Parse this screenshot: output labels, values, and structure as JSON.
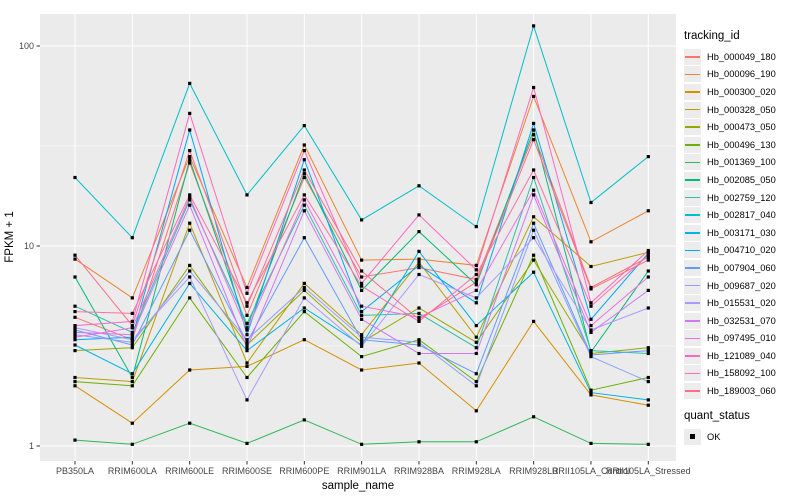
{
  "figure": {
    "legend": {
      "tracking_title": "tracking_id",
      "quant_title": "quant_status",
      "quant_ok_label": "OK",
      "quant_ok_marker": "black-square"
    },
    "colors": {
      "panel_bg": "#EBEBEB",
      "grid": "#FFFFFF",
      "marker": "#000000",
      "axis_text": "#444444",
      "axis_title": "#000000",
      "legend_key_bg": "#ECECEC"
    }
  },
  "chart_data": {
    "type": "line",
    "title": "",
    "xlabel": "sample_name",
    "ylabel": "FPKM + 1",
    "y_scale": "log10",
    "y_ticks": [
      1,
      10,
      100
    ],
    "y_minor_breaks": [
      3.162,
      31.62
    ],
    "ylim": [
      0.85,
      145
    ],
    "grid": "white major and minor gridlines on gray panel",
    "legend_position": "right",
    "point_shape": "small black square at every data point (quant_status = OK)",
    "categories": [
      "PB350LA",
      "RRIM600LA",
      "RRIM600LE",
      "RRIM600SE",
      "RRIM600PE",
      "RRIM901LA",
      "RRIM928BA",
      "RRIM928LA",
      "RRIM928LB",
      "RRII105LA_Control",
      "RRII105LA_Stressed"
    ],
    "series": [
      {
        "name": "Hb_000049_180",
        "color": "#F8766D",
        "values": [
          4.4,
          3.4,
          26,
          4.5,
          22,
          7.0,
          7.8,
          6.8,
          36,
          6.2,
          8.8
        ]
      },
      {
        "name": "Hb_000096_190",
        "color": "#EC8431",
        "values": [
          8.6,
          5.5,
          28,
          6.2,
          32,
          8.5,
          8.6,
          8.0,
          56,
          10.5,
          15
        ]
      },
      {
        "name": "Hb_000300_020",
        "color": "#D69100",
        "values": [
          2.0,
          1.3,
          2.4,
          2.5,
          3.4,
          2.4,
          2.6,
          1.5,
          4.2,
          1.8,
          1.6
        ]
      },
      {
        "name": "Hb_000328_050",
        "color": "#BC9D00",
        "values": [
          2.2,
          2.1,
          13,
          2.6,
          6.5,
          3.6,
          8.3,
          3.5,
          14,
          7.9,
          9.3
        ]
      },
      {
        "name": "Hb_000473_050",
        "color": "#97A900",
        "values": [
          3.0,
          3.1,
          8.0,
          3.2,
          6.0,
          3.3,
          4.9,
          3.3,
          8.5,
          2.9,
          3.1
        ]
      },
      {
        "name": "Hb_000496_130",
        "color": "#6BB100",
        "values": [
          2.1,
          2.0,
          5.5,
          2.2,
          4.7,
          2.8,
          3.4,
          2.1,
          9.0,
          1.9,
          2.2
        ]
      },
      {
        "name": "Hb_001369_100",
        "color": "#2FB857",
        "values": [
          1.07,
          1.02,
          1.3,
          1.03,
          1.35,
          1.02,
          1.05,
          1.05,
          1.4,
          1.03,
          1.02
        ]
      },
      {
        "name": "Hb_002085_050",
        "color": "#00BB77",
        "values": [
          7.0,
          2.2,
          27,
          3.9,
          23,
          6.0,
          11.8,
          6.4,
          38,
          2.95,
          7.5
        ]
      },
      {
        "name": "Hb_002759_120",
        "color": "#2FC1A7",
        "values": [
          5.0,
          3.7,
          17,
          4.1,
          16,
          4.5,
          4.6,
          3.1,
          22,
          3.0,
          2.9
        ]
      },
      {
        "name": "Hb_002817_040",
        "color": "#00BFC8",
        "values": [
          22,
          11,
          65,
          18,
          40,
          13.5,
          20,
          12.5,
          126,
          16.5,
          28
        ]
      },
      {
        "name": "Hb_003171_030",
        "color": "#00B4E6",
        "values": [
          3.2,
          2.3,
          6.5,
          3.0,
          4.9,
          3.2,
          9.4,
          4.0,
          7.4,
          1.85,
          1.7
        ]
      },
      {
        "name": "Hb_004710_020",
        "color": "#00A7F5",
        "values": [
          3.4,
          3.5,
          38,
          3.6,
          27,
          4.7,
          8.0,
          5.2,
          41,
          4.3,
          9.2
        ]
      },
      {
        "name": "Hb_007904_060",
        "color": "#619CFF",
        "values": [
          3.8,
          3.2,
          12,
          3.3,
          11,
          3.4,
          3.2,
          2.3,
          13,
          2.85,
          3.0
        ]
      },
      {
        "name": "Hb_009687_020",
        "color": "#8D9FFF",
        "values": [
          3.6,
          3.3,
          7.5,
          3.4,
          6.2,
          3.5,
          3.3,
          2.0,
          12,
          2.8,
          2.1
        ]
      },
      {
        "name": "Hb_015531_020",
        "color": "#A99BFF",
        "values": [
          3.9,
          3.4,
          7.0,
          1.7,
          5.5,
          3.15,
          7.2,
          5.5,
          11,
          3.8,
          4.9
        ]
      },
      {
        "name": "Hb_032531_070",
        "color": "#CE78F8",
        "values": [
          3.7,
          3.6,
          16,
          3.1,
          15,
          4.3,
          2.9,
          2.9,
          18,
          3.7,
          6.0
        ]
      },
      {
        "name": "Hb_097495_010",
        "color": "#EE6FE3",
        "values": [
          3.5,
          3.9,
          17.5,
          3.8,
          17,
          5.0,
          4.4,
          6.0,
          19,
          4.0,
          7.0
        ]
      },
      {
        "name": "Hb_121089_040",
        "color": "#FF68C2",
        "values": [
          4.0,
          4.2,
          46,
          5.8,
          30,
          6.5,
          14.3,
          7.6,
          62,
          5.2,
          9.5
        ]
      },
      {
        "name": "Hb_158092_100",
        "color": "#FF6FA9",
        "values": [
          4.7,
          4.6,
          18,
          5.2,
          18,
          6.3,
          4.2,
          7.2,
          24,
          5.0,
          9.0
        ]
      },
      {
        "name": "Hb_189003_060",
        "color": "#FB6F8B",
        "values": [
          9.0,
          4.0,
          30,
          5.0,
          24,
          7.5,
          4.3,
          6.6,
          34,
          6.1,
          8.5
        ]
      }
    ]
  }
}
